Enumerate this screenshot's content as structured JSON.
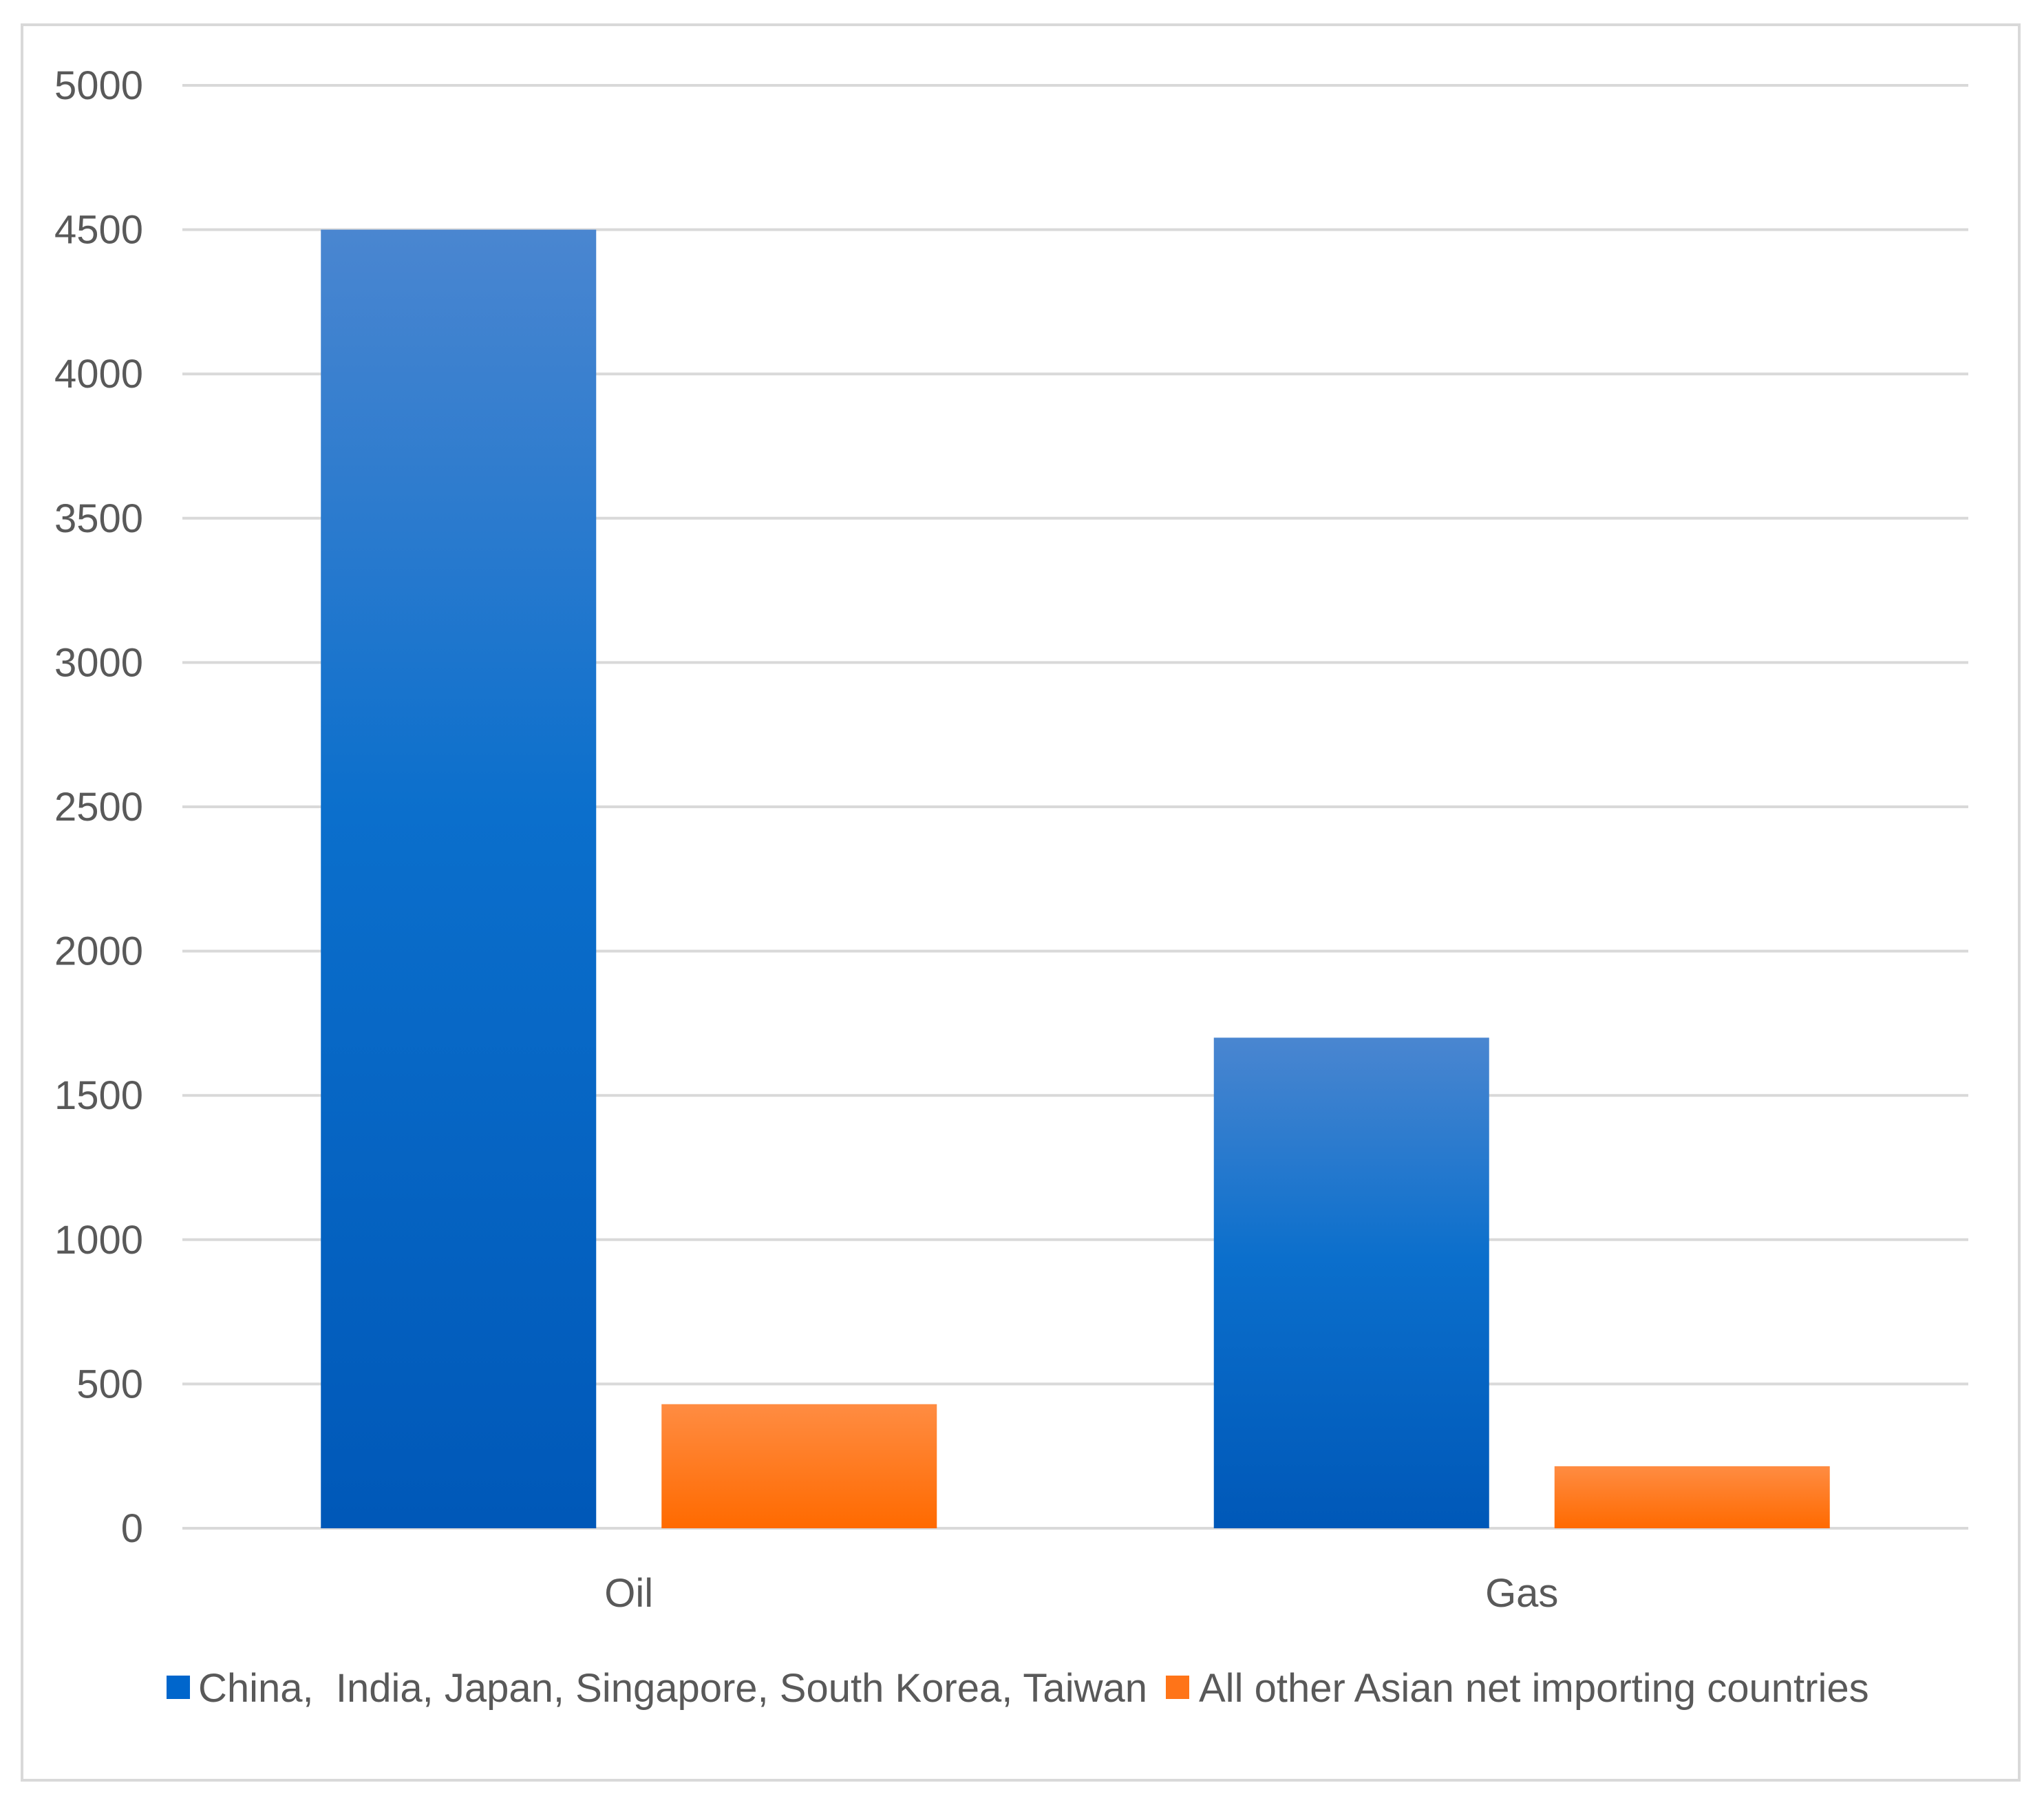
{
  "chart_data": {
    "type": "bar",
    "categories": [
      "Oil",
      "Gas"
    ],
    "series": [
      {
        "name": "China,  India, Japan, Singapore, South Korea, Taiwan",
        "color": "#0066cc",
        "values": [
          4500,
          1700
        ]
      },
      {
        "name": "All other Asian net importing countries",
        "color": "#ff7418",
        "values": [
          430,
          215
        ]
      }
    ],
    "title": "",
    "xlabel": "",
    "ylabel": "",
    "ylim": [
      0,
      5000
    ],
    "yticks": [
      "0",
      "500",
      "1000",
      "1500",
      "2000",
      "2500",
      "3000",
      "3500",
      "4000",
      "4500",
      "5000"
    ],
    "grid": true,
    "legend_position": "bottom"
  }
}
